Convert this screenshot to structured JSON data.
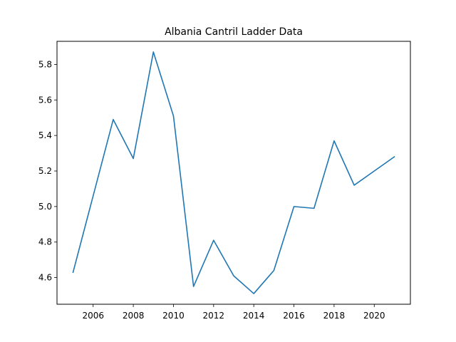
{
  "chart_data": {
    "type": "line",
    "title": "Albania Cantril Ladder Data",
    "xlabel": "",
    "ylabel": "",
    "xlim": [
      2004.2,
      2021.8
    ],
    "ylim": [
      4.45,
      5.93
    ],
    "x_ticks": [
      2006,
      2008,
      2010,
      2012,
      2014,
      2016,
      2018,
      2020
    ],
    "y_ticks": [
      4.6,
      4.8,
      5.0,
      5.2,
      5.4,
      5.6,
      5.8
    ],
    "y_tick_labels": [
      "4.6",
      "4.8",
      "5.0",
      "5.2",
      "5.4",
      "5.6",
      "5.8"
    ],
    "grid": false,
    "series": [
      {
        "color": "#1f77b4",
        "x": [
          2005,
          2006,
          2007,
          2008,
          2009,
          2010,
          2011,
          2012,
          2013,
          2014,
          2015,
          2016,
          2017,
          2018,
          2019,
          2020,
          2021
        ],
        "y": [
          4.63,
          5.06,
          5.49,
          5.27,
          5.87,
          5.51,
          4.55,
          4.81,
          4.61,
          4.51,
          4.64,
          5.0,
          4.99,
          5.37,
          5.12,
          5.2,
          5.28
        ]
      }
    ]
  }
}
